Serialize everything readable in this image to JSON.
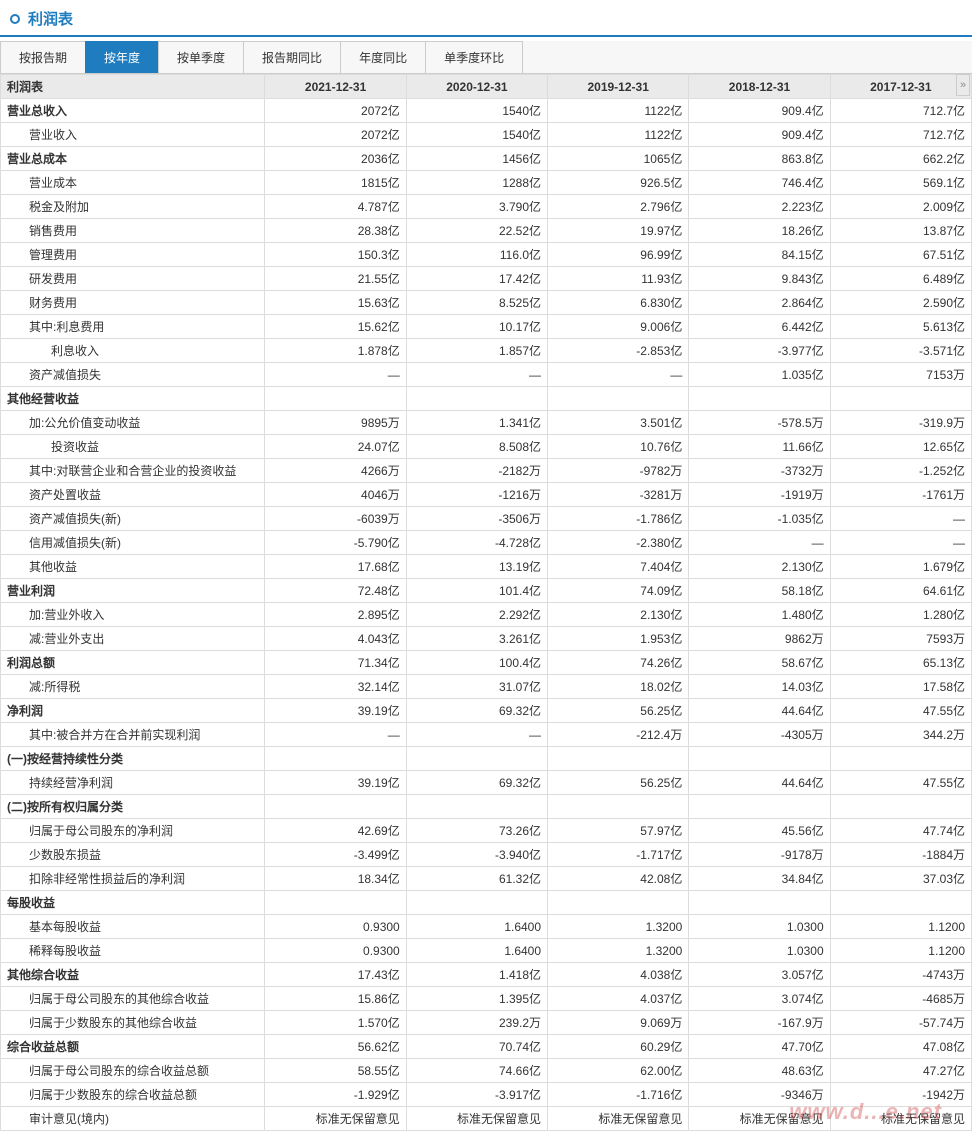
{
  "header": {
    "title": "利润表"
  },
  "tabs": [
    {
      "label": "按报告期",
      "active": false
    },
    {
      "label": "按年度",
      "active": true
    },
    {
      "label": "按单季度",
      "active": false
    },
    {
      "label": "报告期同比",
      "active": false
    },
    {
      "label": "年度同比",
      "active": false
    },
    {
      "label": "单季度环比",
      "active": false
    }
  ],
  "table": {
    "header_label": "利润表",
    "columns": [
      "2021-12-31",
      "2020-12-31",
      "2019-12-31",
      "2018-12-31",
      "2017-12-31"
    ],
    "rows": [
      {
        "label": "营业总收入",
        "cls": "section",
        "v": [
          "2072亿",
          "1540亿",
          "1122亿",
          "909.4亿",
          "712.7亿"
        ]
      },
      {
        "label": "营业收入",
        "cls": "ind1",
        "v": [
          "2072亿",
          "1540亿",
          "1122亿",
          "909.4亿",
          "712.7亿"
        ]
      },
      {
        "label": "营业总成本",
        "cls": "section",
        "v": [
          "2036亿",
          "1456亿",
          "1065亿",
          "863.8亿",
          "662.2亿"
        ]
      },
      {
        "label": "营业成本",
        "cls": "ind1",
        "v": [
          "1815亿",
          "1288亿",
          "926.5亿",
          "746.4亿",
          "569.1亿"
        ]
      },
      {
        "label": "税金及附加",
        "cls": "ind1",
        "v": [
          "4.787亿",
          "3.790亿",
          "2.796亿",
          "2.223亿",
          "2.009亿"
        ]
      },
      {
        "label": "销售费用",
        "cls": "ind1",
        "v": [
          "28.38亿",
          "22.52亿",
          "19.97亿",
          "18.26亿",
          "13.87亿"
        ]
      },
      {
        "label": "管理费用",
        "cls": "ind1",
        "v": [
          "150.3亿",
          "116.0亿",
          "96.99亿",
          "84.15亿",
          "67.51亿"
        ]
      },
      {
        "label": "研发费用",
        "cls": "ind1",
        "v": [
          "21.55亿",
          "17.42亿",
          "11.93亿",
          "9.843亿",
          "6.489亿"
        ]
      },
      {
        "label": "财务费用",
        "cls": "ind1",
        "v": [
          "15.63亿",
          "8.525亿",
          "6.830亿",
          "2.864亿",
          "2.590亿"
        ]
      },
      {
        "label": "其中:利息费用",
        "cls": "ind1",
        "v": [
          "15.62亿",
          "10.17亿",
          "9.006亿",
          "6.442亿",
          "5.613亿"
        ]
      },
      {
        "label": "利息收入",
        "cls": "ind2",
        "v": [
          "1.878亿",
          "1.857亿",
          "-2.853亿",
          "-3.977亿",
          "-3.571亿"
        ]
      },
      {
        "label": "资产减值损失",
        "cls": "ind1",
        "v": [
          "—",
          "—",
          "—",
          "1.035亿",
          "7153万"
        ]
      },
      {
        "label": "其他经营收益",
        "cls": "section",
        "v": [
          "",
          "",
          "",
          "",
          ""
        ]
      },
      {
        "label": "加:公允价值变动收益",
        "cls": "ind1",
        "v": [
          "9895万",
          "1.341亿",
          "3.501亿",
          "-578.5万",
          "-319.9万"
        ]
      },
      {
        "label": "投资收益",
        "cls": "ind2",
        "v": [
          "24.07亿",
          "8.508亿",
          "10.76亿",
          "11.66亿",
          "12.65亿"
        ]
      },
      {
        "label": "其中:对联营企业和合营企业的投资收益",
        "cls": "ind1",
        "v": [
          "4266万",
          "-2182万",
          "-9782万",
          "-3732万",
          "-1.252亿"
        ]
      },
      {
        "label": "资产处置收益",
        "cls": "ind1",
        "v": [
          "4046万",
          "-1216万",
          "-3281万",
          "-1919万",
          "-1761万"
        ]
      },
      {
        "label": "资产减值损失(新)",
        "cls": "ind1",
        "v": [
          "-6039万",
          "-3506万",
          "-1.786亿",
          "-1.035亿",
          "—"
        ]
      },
      {
        "label": "信用减值损失(新)",
        "cls": "ind1",
        "v": [
          "-5.790亿",
          "-4.728亿",
          "-2.380亿",
          "—",
          "—"
        ]
      },
      {
        "label": "其他收益",
        "cls": "ind1",
        "v": [
          "17.68亿",
          "13.19亿",
          "7.404亿",
          "2.130亿",
          "1.679亿"
        ]
      },
      {
        "label": "营业利润",
        "cls": "section",
        "v": [
          "72.48亿",
          "101.4亿",
          "74.09亿",
          "58.18亿",
          "64.61亿"
        ]
      },
      {
        "label": "加:营业外收入",
        "cls": "ind1",
        "v": [
          "2.895亿",
          "2.292亿",
          "2.130亿",
          "1.480亿",
          "1.280亿"
        ]
      },
      {
        "label": "减:营业外支出",
        "cls": "ind1",
        "v": [
          "4.043亿",
          "3.261亿",
          "1.953亿",
          "9862万",
          "7593万"
        ]
      },
      {
        "label": "利润总额",
        "cls": "section",
        "v": [
          "71.34亿",
          "100.4亿",
          "74.26亿",
          "58.67亿",
          "65.13亿"
        ]
      },
      {
        "label": "减:所得税",
        "cls": "ind1",
        "v": [
          "32.14亿",
          "31.07亿",
          "18.02亿",
          "14.03亿",
          "17.58亿"
        ]
      },
      {
        "label": "净利润",
        "cls": "section",
        "v": [
          "39.19亿",
          "69.32亿",
          "56.25亿",
          "44.64亿",
          "47.55亿"
        ]
      },
      {
        "label": "其中:被合并方在合并前实现利润",
        "cls": "ind1",
        "v": [
          "—",
          "—",
          "-212.4万",
          "-4305万",
          "344.2万"
        ]
      },
      {
        "label": "(一)按经营持续性分类",
        "cls": "section",
        "v": [
          "",
          "",
          "",
          "",
          ""
        ]
      },
      {
        "label": "持续经营净利润",
        "cls": "ind1",
        "v": [
          "39.19亿",
          "69.32亿",
          "56.25亿",
          "44.64亿",
          "47.55亿"
        ]
      },
      {
        "label": "(二)按所有权归属分类",
        "cls": "section",
        "v": [
          "",
          "",
          "",
          "",
          ""
        ]
      },
      {
        "label": "归属于母公司股东的净利润",
        "cls": "ind1",
        "v": [
          "42.69亿",
          "73.26亿",
          "57.97亿",
          "45.56亿",
          "47.74亿"
        ]
      },
      {
        "label": "少数股东损益",
        "cls": "ind1",
        "v": [
          "-3.499亿",
          "-3.940亿",
          "-1.717亿",
          "-9178万",
          "-1884万"
        ]
      },
      {
        "label": "扣除非经常性损益后的净利润",
        "cls": "ind1",
        "v": [
          "18.34亿",
          "61.32亿",
          "42.08亿",
          "34.84亿",
          "37.03亿"
        ]
      },
      {
        "label": "每股收益",
        "cls": "section",
        "v": [
          "",
          "",
          "",
          "",
          ""
        ]
      },
      {
        "label": "基本每股收益",
        "cls": "ind1",
        "v": [
          "0.9300",
          "1.6400",
          "1.3200",
          "1.0300",
          "1.1200"
        ]
      },
      {
        "label": "稀释每股收益",
        "cls": "ind1",
        "v": [
          "0.9300",
          "1.6400",
          "1.3200",
          "1.0300",
          "1.1200"
        ]
      },
      {
        "label": "其他综合收益",
        "cls": "section",
        "v": [
          "17.43亿",
          "1.418亿",
          "4.038亿",
          "3.057亿",
          "-4743万"
        ]
      },
      {
        "label": "归属于母公司股东的其他综合收益",
        "cls": "ind1",
        "v": [
          "15.86亿",
          "1.395亿",
          "4.037亿",
          "3.074亿",
          "-4685万"
        ]
      },
      {
        "label": "归属于少数股东的其他综合收益",
        "cls": "ind1",
        "v": [
          "1.570亿",
          "239.2万",
          "9.069万",
          "-167.9万",
          "-57.74万"
        ]
      },
      {
        "label": "综合收益总额",
        "cls": "section",
        "v": [
          "56.62亿",
          "70.74亿",
          "60.29亿",
          "47.70亿",
          "47.08亿"
        ]
      },
      {
        "label": "归属于母公司股东的综合收益总额",
        "cls": "ind1",
        "v": [
          "58.55亿",
          "74.66亿",
          "62.00亿",
          "48.63亿",
          "47.27亿"
        ]
      },
      {
        "label": "归属于少数股东的综合收益总额",
        "cls": "ind1",
        "v": [
          "-1.929亿",
          "-3.917亿",
          "-1.716亿",
          "-9346万",
          "-1942万"
        ]
      },
      {
        "label": "审计意见(境内)",
        "cls": "ind1",
        "v": [
          "标准无保留意见",
          "标准无保留意见",
          "标准无保留意见",
          "标准无保留意见",
          "标准无保留意见"
        ]
      }
    ]
  },
  "watermark": "www.d...e.net",
  "scroll_next": "»",
  "colors": {
    "accent": "#1f7dbf",
    "border": "#dcdcdc",
    "header_bg": "#eaeaea",
    "tab_bg": "#f7f7f7",
    "text": "#333333"
  }
}
